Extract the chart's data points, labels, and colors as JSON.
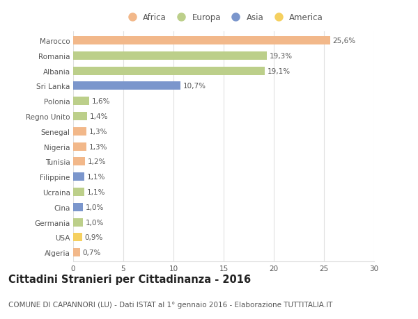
{
  "categories": [
    "Marocco",
    "Romania",
    "Albania",
    "Sri Lanka",
    "Polonia",
    "Regno Unito",
    "Senegal",
    "Nigeria",
    "Tunisia",
    "Filippine",
    "Ucraina",
    "Cina",
    "Germania",
    "USA",
    "Algeria"
  ],
  "values": [
    25.6,
    19.3,
    19.1,
    10.7,
    1.6,
    1.4,
    1.3,
    1.3,
    1.2,
    1.1,
    1.1,
    1.0,
    1.0,
    0.9,
    0.7
  ],
  "labels": [
    "25,6%",
    "19,3%",
    "19,1%",
    "10,7%",
    "1,6%",
    "1,4%",
    "1,3%",
    "1,3%",
    "1,2%",
    "1,1%",
    "1,1%",
    "1,0%",
    "1,0%",
    "0,9%",
    "0,7%"
  ],
  "bar_colors": [
    "#F2B88A",
    "#BCCF8A",
    "#BCCF8A",
    "#7B96CC",
    "#BCCF8A",
    "#BCCF8A",
    "#F2B88A",
    "#F2B88A",
    "#F2B88A",
    "#7B96CC",
    "#BCCF8A",
    "#7B96CC",
    "#BCCF8A",
    "#F5D060",
    "#F2B88A"
  ],
  "continent_colors": {
    "Africa": "#F2B88A",
    "Europa": "#BCCF8A",
    "Asia": "#7B96CC",
    "America": "#F5D060"
  },
  "legend_labels": [
    "Africa",
    "Europa",
    "Asia",
    "America"
  ],
  "xlim": [
    0,
    30
  ],
  "xticks": [
    0,
    5,
    10,
    15,
    20,
    25,
    30
  ],
  "title": "Cittadini Stranieri per Cittadinanza - 2016",
  "subtitle": "COMUNE DI CAPANNORI (LU) - Dati ISTAT al 1° gennaio 2016 - Elaborazione TUTTITALIA.IT",
  "background_color": "#ffffff",
  "grid_color": "#e0e0e0",
  "title_fontsize": 10.5,
  "subtitle_fontsize": 7.5,
  "label_fontsize": 7.5,
  "tick_fontsize": 7.5,
  "bar_height": 0.55
}
